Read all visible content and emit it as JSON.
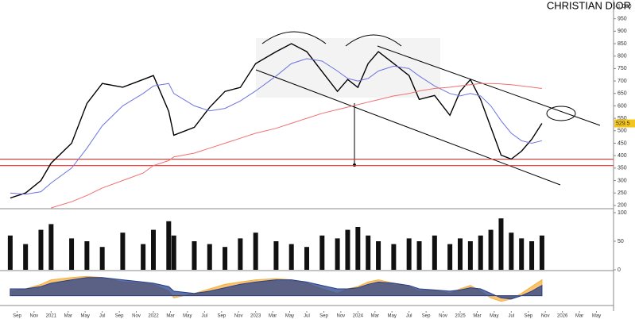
{
  "chart_data": {
    "type": "line",
    "title": "CHRISTIAN DIOR",
    "x": [
      2020.6,
      2020.75,
      2020.9,
      2021.0,
      2021.2,
      2021.35,
      2021.5,
      2021.7,
      2021.9,
      2022.0,
      2022.15,
      2022.2,
      2022.4,
      2022.55,
      2022.7,
      2022.85,
      2023.0,
      2023.2,
      2023.35,
      2023.5,
      2023.65,
      2023.8,
      2023.9,
      2024.0,
      2024.1,
      2024.2,
      2024.35,
      2024.5,
      2024.6,
      2024.75,
      2024.9,
      2025.0,
      2025.1,
      2025.2,
      2025.3,
      2025.4,
      2025.5,
      2025.6,
      2025.7,
      2025.8
    ],
    "series": [
      {
        "color": "#000000",
        "values": [
          230,
          250,
          300,
          370,
          450,
          610,
          690,
          675,
          706,
          722,
          578,
          482,
          514,
          594,
          658,
          674,
          770,
          818,
          850,
          818,
          738,
          658,
          706,
          674,
          770,
          818,
          770,
          722,
          626,
          642,
          562,
          658,
          706,
          626,
          514,
          402,
          386,
          418,
          466,
          529.5
        ]
      },
      {
        "color": "#6b74e0",
        "values": [
          250,
          245,
          255,
          290,
          350,
          430,
          520,
          600,
          650,
          680,
          690,
          650,
          600,
          580,
          590,
          620,
          660,
          720,
          770,
          790,
          780,
          740,
          710,
          700,
          710,
          740,
          760,
          750,
          720,
          680,
          650,
          640,
          650,
          640,
          600,
          540,
          490,
          460,
          450,
          460
        ]
      },
      {
        "color": "#f07070",
        "values": [
          null,
          null,
          null,
          190,
          215,
          240,
          270,
          300,
          330,
          360,
          380,
          395,
          410,
          430,
          450,
          470,
          490,
          510,
          530,
          550,
          570,
          585,
          595,
          605,
          615,
          625,
          640,
          650,
          660,
          670,
          675,
          680,
          685,
          690,
          690,
          688,
          685,
          680,
          675,
          670
        ]
      }
    ],
    "hlines": [
      386,
      360
    ],
    "hline_color": "#e03030",
    "xlim": [
      2020.5,
      2026.5
    ],
    "xticks": [
      {
        "value": 2020.667,
        "label": "Sep"
      },
      {
        "value": 2020.833,
        "label": "Nov"
      },
      {
        "value": 2021,
        "label": "2021"
      },
      {
        "value": 2021.167,
        "label": "Mar"
      },
      {
        "value": 2021.333,
        "label": "May"
      },
      {
        "value": 2021.5,
        "label": "Jul"
      },
      {
        "value": 2021.667,
        "label": "Sep"
      },
      {
        "value": 2021.833,
        "label": "Nov"
      },
      {
        "value": 2022,
        "label": "2022"
      },
      {
        "value": 2022.167,
        "label": "Mar"
      },
      {
        "value": 2022.333,
        "label": "May"
      },
      {
        "value": 2022.5,
        "label": "Jul"
      },
      {
        "value": 2022.667,
        "label": "Sep"
      },
      {
        "value": 2022.833,
        "label": "Nov"
      },
      {
        "value": 2023,
        "label": "2023"
      },
      {
        "value": 2023.167,
        "label": "Mar"
      },
      {
        "value": 2023.333,
        "label": "May"
      },
      {
        "value": 2023.5,
        "label": "Jul"
      },
      {
        "value": 2023.667,
        "label": "Sep"
      },
      {
        "value": 2023.833,
        "label": "Nov"
      },
      {
        "value": 2024,
        "label": "2024"
      },
      {
        "value": 2024.167,
        "label": "Mar"
      },
      {
        "value": 2024.333,
        "label": "May"
      },
      {
        "value": 2024.5,
        "label": "Jul"
      },
      {
        "value": 2024.667,
        "label": "Sep"
      },
      {
        "value": 2024.833,
        "label": "Nov"
      },
      {
        "value": 2025,
        "label": "2025"
      },
      {
        "value": 2025.167,
        "label": "Mar"
      },
      {
        "value": 2025.333,
        "label": "May"
      },
      {
        "value": 2025.5,
        "label": "Jul"
      },
      {
        "value": 2025.667,
        "label": "Sep"
      },
      {
        "value": 2025.833,
        "label": "Nov"
      },
      {
        "value": 2026,
        "label": "2026"
      },
      {
        "value": 2026.167,
        "label": "Mar"
      },
      {
        "value": 2026.333,
        "label": "May"
      }
    ],
    "ylim": [
      190,
      1000
    ],
    "yticks": [
      200,
      250,
      300,
      350,
      400,
      450,
      500,
      550,
      600,
      650,
      700,
      750,
      800,
      850,
      900,
      950,
      {
        "value": 1000,
        "label": "1,000"
      }
    ],
    "volume": {
      "color": "#111111",
      "values": [
        60,
        45,
        70,
        80,
        55,
        50,
        40,
        65,
        45,
        70,
        85,
        60,
        50,
        45,
        40,
        55,
        65,
        50,
        45,
        40,
        60,
        55,
        70,
        75,
        60,
        50,
        45,
        55,
        50,
        60,
        45,
        55,
        50,
        60,
        70,
        90,
        65,
        55,
        50,
        60
      ],
      "ylim": [
        0,
        100
      ],
      "yticks": [
        0,
        50,
        100
      ]
    },
    "oscillator": {
      "ylim": [
        -40,
        100
      ],
      "series": [
        {
          "color": "#f5b041",
          "values": [
            20,
            30,
            50,
            70,
            80,
            85,
            80,
            60,
            55,
            50,
            20,
            -10,
            10,
            30,
            50,
            60,
            70,
            75,
            70,
            55,
            30,
            10,
            30,
            40,
            60,
            70,
            55,
            40,
            20,
            25,
            10,
            30,
            45,
            20,
            -10,
            -25,
            -15,
            10,
            40,
            70
          ]
        },
        {
          "color": "#27408b",
          "values": [
            30,
            30,
            40,
            55,
            70,
            80,
            80,
            70,
            60,
            55,
            40,
            20,
            10,
            20,
            35,
            50,
            60,
            70,
            70,
            60,
            45,
            30,
            30,
            35,
            50,
            60,
            55,
            45,
            30,
            25,
            20,
            25,
            35,
            30,
            10,
            -10,
            -15,
            0,
            20,
            45
          ]
        }
      ]
    }
  }
}
